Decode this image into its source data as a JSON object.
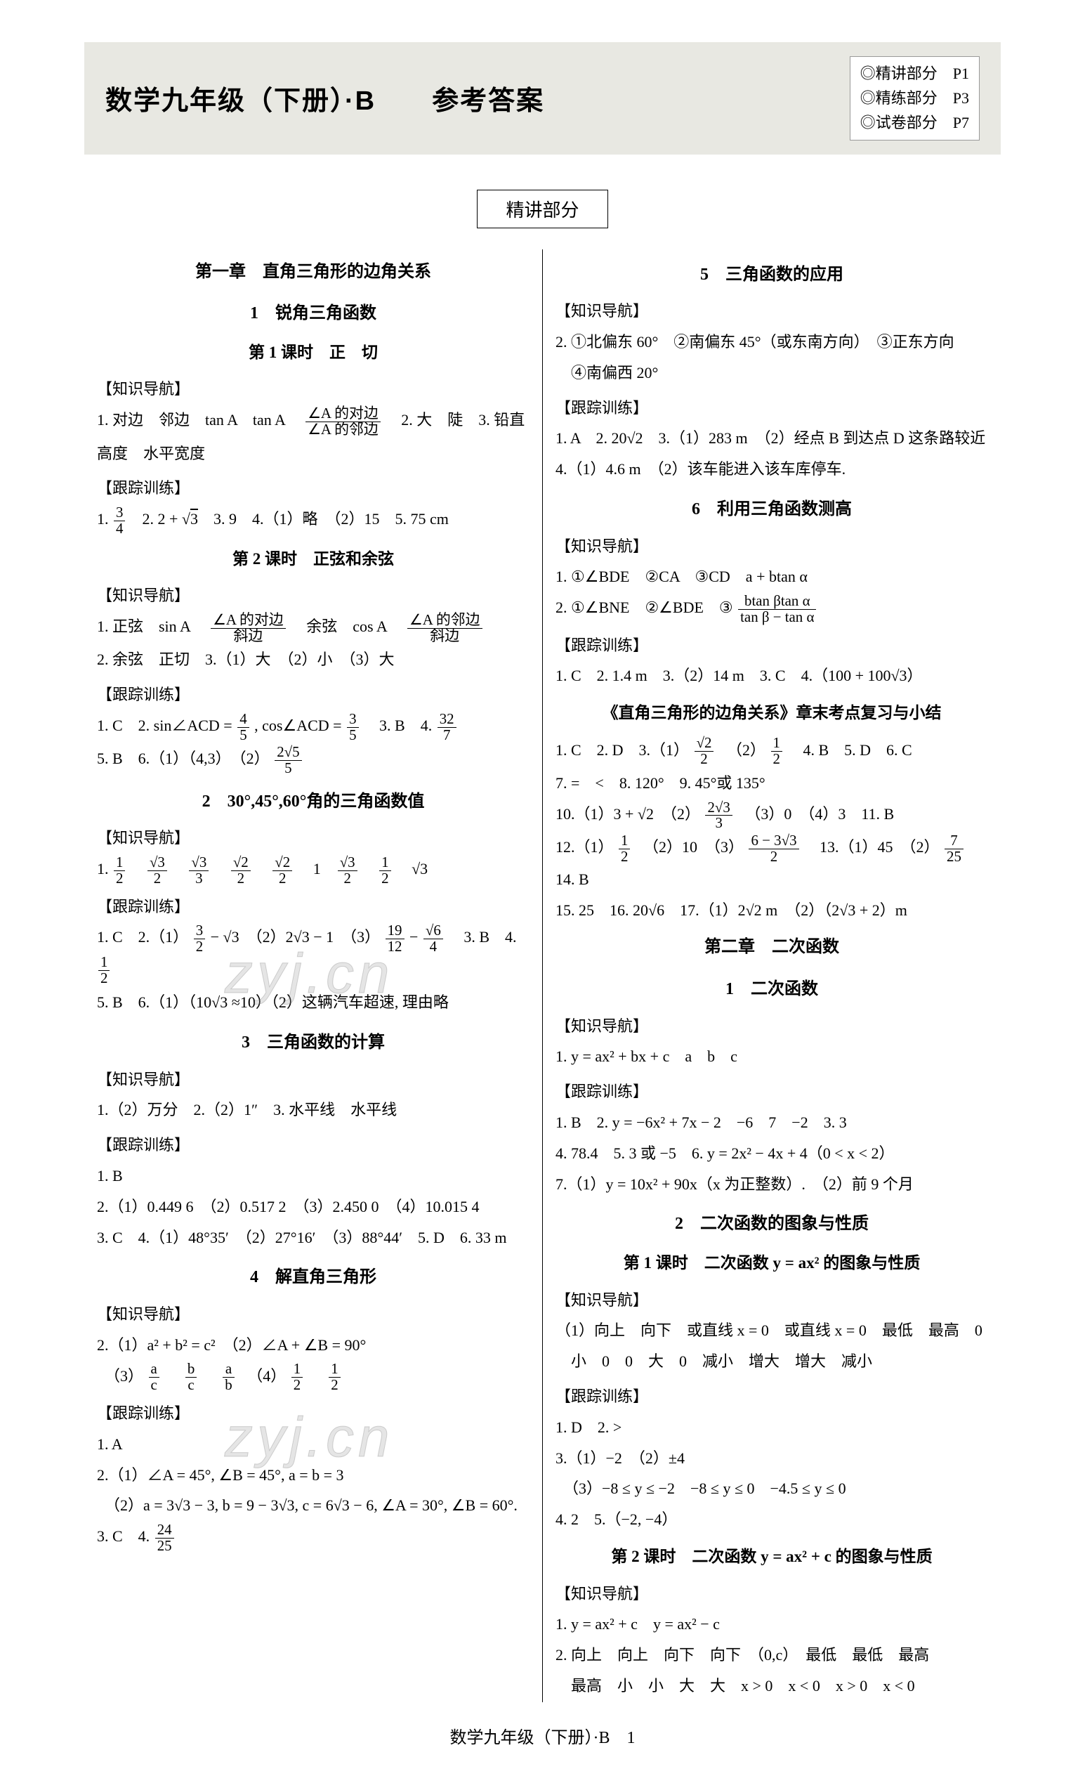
{
  "header": {
    "title": "数学九年级（下册）·B　　参考答案",
    "page_refs": [
      "◎精讲部分　P1",
      "◎精练部分　P3",
      "◎试卷部分　P7"
    ]
  },
  "section_tab": "精讲部分",
  "watermark": "zyj.cn",
  "footer": "数学九年级（下册）·B　1",
  "left": {
    "chapter1": "第一章　直角三角形的边角关系",
    "s1": "1　锐角三角函数",
    "l1": "第 1 课时　正　切",
    "k1_label": "【知识导航】",
    "k1_l1a": "1. 对边　邻边　tan A　tan A　",
    "k1_frac_num": "∠A 的对边",
    "k1_frac_den": "∠A 的邻边",
    "k1_l1b": "　2. 大　陡　3. 铅直",
    "k1_l2": "高度　水平宽度",
    "t1_label": "【跟踪训练】",
    "t1_l1": "1. 3/4　2. 2 + √3　3. 9　4.（1）略　（2）15　5. 75 cm",
    "l2": "第 2 课时　正弦和余弦",
    "k2_l1a": "1. 正弦　sin A　",
    "k2_f1n": "∠A 的对边",
    "k2_f1d": "斜边",
    "k2_l1b": "　余弦　cos A　",
    "k2_f2n": "∠A 的邻边",
    "k2_f2d": "斜边",
    "k2_l2": "2. 余弦　正切　3.（1）大　（2）小　（3）大",
    "t2_l1a": "1. C　2. sin∠ACD = ",
    "t2_f1n": "4",
    "t2_f1d": "5",
    "t2_l1b": ", cos∠ACD = ",
    "t2_f2n": "3",
    "t2_f2d": "5",
    "t2_l1c": "　3. B　4. ",
    "t2_f3n": "32",
    "t2_f3d": "7",
    "t2_l2a": "5. B　6.（1）（4,3）　（2）",
    "t2_f4n": "2√5",
    "t2_f4d": "5",
    "s2": "2　30°,45°,60°角的三角函数值",
    "k3_l1": "1. 1/2  √3/2  √3/3  √2/2  √2/2  1  √3/2  1/2  √3",
    "t3_l1a": "1. C　2.（1）",
    "t3_f1n": "3",
    "t3_f1d": "2",
    "t3_l1b": " − √3　（2）2√3 − 1　（3）",
    "t3_f2n": "19",
    "t3_f2d": "12",
    "t3_l1c": " − ",
    "t3_f3n": "√6",
    "t3_f3d": "4",
    "t3_l1d": "　3. B　4. ",
    "t3_f4n": "1",
    "t3_f4d": "2",
    "t3_l2": "5. B　6.（1）（10√3 ≈10）（2）这辆汽车超速, 理由略",
    "s3": "3　三角函数的计算",
    "k4_l1": "1.（2）万分　2.（2）1″　3. 水平线　水平线",
    "t4_l1": "1. B",
    "t4_l2": "2.（1）0.449 6　（2）0.517 2　（3）2.450 0　（4）10.015 4",
    "t4_l3": "3. C　4.（1）48°35′　（2）27°16′　（3）88°44′　5. D　6. 33 m",
    "s4": "4　解直角三角形",
    "k5_l1": "2.（1）a² + b² = c²　（2）∠A + ∠B = 90°",
    "k5_l2a": "　（3）",
    "k5_f1n": "a",
    "k5_f1d": "c",
    "k5_l2b": "　",
    "k5_f2n": "b",
    "k5_f2d": "c",
    "k5_l2c": "　",
    "k5_f3n": "a",
    "k5_f3d": "b",
    "k5_l2d": "　（4）",
    "k5_f4n": "1",
    "k5_f4d": "2",
    "k5_l2e": "　",
    "k5_f5n": "1",
    "k5_f5d": "2",
    "t5_l1": "1. A",
    "t5_l2": "2.（1）∠A = 45°, ∠B = 45°, a = b = 3",
    "t5_l3": "　（2）a = 3√3 − 3, b = 9 − 3√3, c = 6√3 − 6, ∠A = 30°, ∠B = 60°.",
    "t5_l4a": "3. C　4. ",
    "t5_f1n": "24",
    "t5_f1d": "25"
  },
  "right": {
    "s5": "5　三角函数的应用",
    "k_label": "【知识导航】",
    "t_label": "【跟踪训练】",
    "k6_l1": "2. ①北偏东 60°　②南偏东 45°（或东南方向）　③正东方向",
    "k6_l2": "　④南偏西 20°",
    "t6_l1": "1. A　2. 20√2　3.（1）283 m　（2）经点 B 到达点 D 这条路较近",
    "t6_l2": "4.（1）4.6 m　（2）该车能进入该车库停车.",
    "s6": "6　利用三角函数测高",
    "k7_l1": "1. ①∠BDE　②CA　③CD　a + btan α",
    "k7_l2a": "2. ①∠BNE　②∠BDE　③",
    "k7_f1n": "btan βtan α",
    "k7_f1d": "tan β − tan α",
    "t7_l1": "1. C　2. 1.4 m　3.（2）14 m　3. C　4.（100 + 100√3）",
    "review": "《直角三角形的边角关系》章末考点复习与小结",
    "r_l1a": "1. C　2. D　3.（1）",
    "r_f1n": "√2",
    "r_f1d": "2",
    "r_l1b": "　（2）",
    "r_f2n": "1",
    "r_f2d": "2",
    "r_l1c": "　4. B　5. D　6. C",
    "r_l2": "7. =　<　8. 120°　9. 45°或 135°",
    "r_l3a": "10.（1）3 + √2　（2）",
    "r_f3n": "2√3",
    "r_f3d": "3",
    "r_l3b": "　（3）0　（4）3　11. B",
    "r_l4a": "12.（1）",
    "r_f4n": "1",
    "r_f4d": "2",
    "r_l4b": "　（2）10　（3）",
    "r_f5n": "6 − 3√3",
    "r_f5d": "2",
    "r_l4c": "　13.（1）45　（2）",
    "r_f6n": "7",
    "r_f6d": "25",
    "r_l4d": "　14. B",
    "r_l5": "15. 25　16. 20√6　17.（1）2√2 m　（2）（2√3 + 2）m",
    "chapter2": "第二章　二次函数",
    "s21": "1　二次函数",
    "k8_l1": "1. y = ax² + bx + c　a　b　c",
    "t8_l1": "1. B　2. y = −6x² + 7x − 2　−6　7　−2　3. 3",
    "t8_l2": "4. 78.4　5. 3 或 −5　6. y = 2x² − 4x + 4（0 < x < 2）",
    "t8_l3": "7.（1）y = 10x² + 90x（x 为正整数）.　（2）前 9 个月",
    "s22": "2　二次函数的图象与性质",
    "l21": "第 1 课时　二次函数 y = ax² 的图象与性质",
    "k9_l1": "（1）向上　向下　或直线 x = 0　或直线 x = 0　最低　最高　0",
    "k9_l2": "　小　0　0　大　0　减小　增大　增大　减小",
    "t9_l1": "1. D　2. >",
    "t9_l2": "3.（1）−2　（2）±4",
    "t9_l3": "　（3）−8 ≤ y ≤ −2　−8 ≤ y ≤ 0　−4.5 ≤ y ≤ 0",
    "t9_l4": "4. 2　5.（−2, −4）",
    "l22": "第 2 课时　二次函数 y = ax² + c 的图象与性质",
    "k10_l1": "1. y = ax² + c　y = ax² − c",
    "k10_l2": "2. 向上　向上　向下　向下　（0,c）　最低　最低　最高",
    "k10_l3": "　最高　小　小　大　大　x > 0　x < 0　x > 0　x < 0"
  }
}
